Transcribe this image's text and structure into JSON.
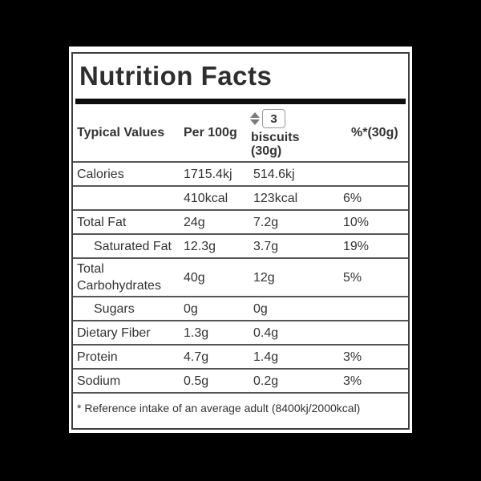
{
  "colors": {
    "background": "#000000",
    "label_text": "#333333",
    "divider": "#565656",
    "title_bar": "#0c0c0c"
  },
  "label": {
    "title": "Nutrition Facts",
    "header": {
      "col1": "Typical Values",
      "col2": "Per 100g",
      "serving_count": "3",
      "serving_unit_line1": "biscuits",
      "serving_unit_line2": "(30g)",
      "col4": "%*(30g)"
    },
    "rows": [
      {
        "label": "Calories",
        "per_100g": "1715.4kj",
        "per_serving": "514.6kj",
        "percent": "",
        "indent": false
      },
      {
        "label": "",
        "per_100g": "410kcal",
        "per_serving": "123kcal",
        "percent": "6%",
        "indent": false
      },
      {
        "label": "Total Fat",
        "per_100g": "24g",
        "per_serving": "7.2g",
        "percent": "10%",
        "indent": false
      },
      {
        "label": "Saturated Fat",
        "per_100g": "12.3g",
        "per_serving": "3.7g",
        "percent": "19%",
        "indent": true
      },
      {
        "label": "Total Carbohydrates",
        "per_100g": "40g",
        "per_serving": "12g",
        "percent": "5%",
        "indent": false
      },
      {
        "label": "Sugars",
        "per_100g": "0g",
        "per_serving": "0g",
        "percent": "",
        "indent": true
      },
      {
        "label": "Dietary Fiber",
        "per_100g": "1.3g",
        "per_serving": "0.4g",
        "percent": "",
        "indent": false
      },
      {
        "label": "Protein",
        "per_100g": "4.7g",
        "per_serving": "1.4g",
        "percent": "3%",
        "indent": false
      },
      {
        "label": "Sodium",
        "per_100g": "0.5g",
        "per_serving": "0.2g",
        "percent": "3%",
        "indent": false
      }
    ],
    "footnote": "* Reference intake of an average adult (8400kj/2000kcal)"
  }
}
